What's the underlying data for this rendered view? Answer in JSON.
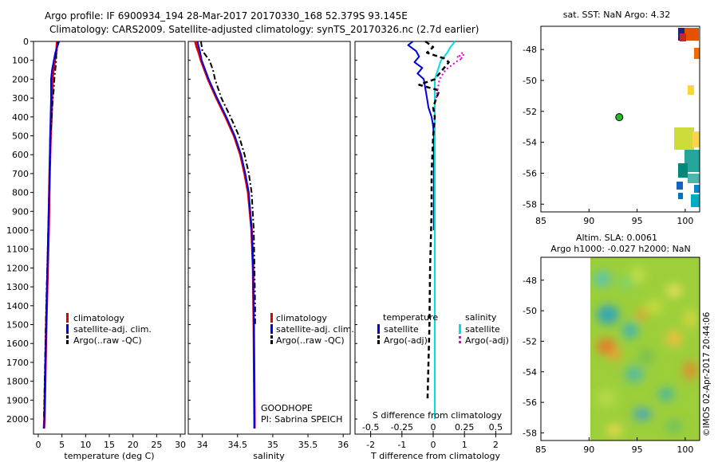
{
  "header": {
    "line1": "Argo profile: IF 6900934_194 28-Mar-2017 20170330_168 52.379S 93.145E",
    "line2": "Climatology: CARS2009. Satellite-adjusted climatology: synTS_20170326.nc (2.7d earlier)"
  },
  "colors": {
    "climatology": "#e00000",
    "satellite": "#0000e0",
    "argo": "#000000",
    "sal_satellite": "#00e0e0",
    "sal_argo": "#e000e0"
  },
  "chart_data": [
    {
      "id": "temperature",
      "type": "line",
      "xlabel": "temperature (deg C)",
      "xlim": [
        -1,
        31
      ],
      "ylim": [
        2080,
        0
      ],
      "xticks": [
        0,
        5,
        10,
        15,
        20,
        25,
        30
      ],
      "yticks": [
        0,
        100,
        200,
        300,
        400,
        500,
        600,
        700,
        800,
        900,
        1000,
        1100,
        1200,
        1300,
        1400,
        1500,
        1600,
        1700,
        1800,
        1900,
        2000
      ],
      "legend": [
        "climatology",
        "satellite-adj. clim.",
        "Argo(..raw -QC)"
      ],
      "series": [
        {
          "name": "climatology",
          "depth": [
            0,
            30,
            60,
            100,
            150,
            200,
            300,
            400,
            500,
            700,
            1000,
            1500,
            2000,
            2050
          ],
          "values": [
            4.0,
            3.9,
            3.8,
            3.5,
            3.2,
            3.0,
            2.9,
            2.8,
            2.6,
            2.4,
            2.2,
            1.7,
            1.3,
            1.2
          ]
        },
        {
          "name": "satellite-adj. clim.",
          "depth": [
            0,
            30,
            60,
            100,
            150,
            200,
            300,
            400,
            500,
            700,
            1000,
            1500,
            2000,
            2050
          ],
          "values": [
            4.4,
            4.0,
            3.6,
            3.3,
            2.9,
            2.7,
            2.7,
            2.6,
            2.5,
            2.4,
            2.1,
            1.7,
            1.3,
            1.2
          ]
        },
        {
          "name": "Argo(..raw -QC)",
          "depth": [
            0,
            30,
            60,
            100,
            150,
            200,
            250,
            300,
            400,
            500,
            700,
            1000,
            1500,
            2000
          ],
          "values": [
            4.2,
            4.0,
            3.8,
            3.8,
            3.6,
            3.4,
            3.3,
            3.1,
            2.8,
            2.6,
            2.4,
            2.1,
            1.6,
            1.2
          ]
        }
      ]
    },
    {
      "id": "salinity",
      "type": "line",
      "xlabel": "salinity",
      "xlim": [
        33.8,
        36.1
      ],
      "ylim": [
        2080,
        0
      ],
      "xticks": [
        34,
        34.5,
        35,
        35.5,
        36
      ],
      "legend": [
        "climatology",
        "satellite-adj. clim.",
        "Argo(..raw -QC)"
      ],
      "annotation": [
        "GOODHOPE",
        "PI: Sabrina SPEICH"
      ],
      "series": [
        {
          "name": "climatology",
          "depth": [
            0,
            30,
            60,
            100,
            200,
            300,
            400,
            500,
            600,
            700,
            800,
            1000,
            1200,
            1500,
            2000,
            2050
          ],
          "values": [
            33.9,
            33.92,
            33.95,
            33.98,
            34.08,
            34.2,
            34.33,
            34.45,
            34.54,
            34.6,
            34.65,
            34.7,
            34.72,
            34.73,
            34.74,
            34.74
          ]
        },
        {
          "name": "satellite-adj. clim.",
          "depth": [
            0,
            30,
            60,
            100,
            200,
            300,
            400,
            500,
            600,
            700,
            800,
            1000,
            1200,
            1500,
            2000,
            2050
          ],
          "values": [
            33.93,
            33.95,
            33.97,
            33.99,
            34.09,
            34.21,
            34.34,
            34.46,
            34.55,
            34.61,
            34.66,
            34.7,
            34.72,
            34.73,
            34.74,
            34.74
          ]
        },
        {
          "name": "Argo(..raw -QC)",
          "depth": [
            0,
            50,
            100,
            150,
            200,
            300,
            400,
            500,
            600,
            700,
            800,
            1000,
            1200,
            1400,
            1500
          ],
          "values": [
            33.98,
            34.0,
            34.1,
            34.15,
            34.18,
            34.27,
            34.4,
            34.52,
            34.6,
            34.66,
            34.7,
            34.73,
            34.74,
            34.75,
            34.75
          ]
        }
      ]
    },
    {
      "id": "difference",
      "type": "line",
      "xlabel": "T difference from climatology",
      "xlabel_top": "S difference from climatology",
      "xlim": [
        -2.5,
        2.5
      ],
      "ylim": [
        2080,
        0
      ],
      "xticks": [
        -2,
        -1,
        0,
        1,
        2
      ],
      "sticks_labels": [
        "-0.5",
        "-0.25",
        "0",
        "0.25",
        "0.5"
      ],
      "sticks_values": [
        -2,
        -1,
        0,
        1,
        2
      ],
      "legend_titles": [
        "temperature",
        "salinity"
      ],
      "legend": [
        "satellite",
        "Argo(-adj)",
        "satellite",
        "Argo(-adj)"
      ],
      "series": [
        {
          "name": "T satellite",
          "depth": [
            0,
            20,
            50,
            80,
            110,
            140,
            170,
            200,
            250,
            300,
            350,
            400,
            450,
            500,
            700,
            1000
          ],
          "values": [
            -0.65,
            -0.8,
            -0.55,
            -0.45,
            -0.6,
            -0.35,
            -0.5,
            -0.3,
            -0.25,
            -0.2,
            -0.15,
            -0.05,
            0.0,
            0.02,
            0.02,
            0.02
          ]
        },
        {
          "name": "T Argo(-adj)",
          "depth": [
            0,
            30,
            60,
            90,
            110,
            140,
            170,
            200,
            230,
            260,
            300,
            350,
            400,
            500,
            700,
            900,
            1200,
            1500,
            1700,
            1900
          ],
          "values": [
            -0.25,
            0.0,
            -0.2,
            0.35,
            0.5,
            0.35,
            0.2,
            0.05,
            -0.45,
            0.2,
            0.1,
            0.0,
            0.05,
            0.0,
            -0.05,
            -0.05,
            -0.1,
            -0.12,
            -0.15,
            -0.18
          ]
        },
        {
          "name": "S satellite",
          "depth": [
            0,
            30,
            60,
            100,
            150,
            200,
            300,
            400,
            500,
            700,
            1000,
            1500,
            2000
          ],
          "values": [
            0.7,
            0.55,
            0.45,
            0.25,
            0.15,
            0.05,
            0.05,
            0.05,
            0.05,
            0.05,
            0.05,
            0.05,
            0.05
          ]
        },
        {
          "name": "S Argo(-adj)",
          "depth": [
            60,
            70,
            80,
            90,
            100,
            150,
            200,
            300
          ],
          "values": [
            0.9,
            1.0,
            0.75,
            0.95,
            0.8,
            0.4,
            0.2,
            0.1
          ]
        }
      ]
    },
    {
      "id": "sst_map",
      "type": "heatmap",
      "title": "sat. SST: NaN Argo: 4.32",
      "xlim": [
        85,
        101.5
      ],
      "ylim": [
        -58.5,
        -46.5
      ],
      "xticks": [
        85,
        90,
        95,
        100
      ],
      "yticks": [
        -48,
        -50,
        -52,
        -54,
        -56,
        -58
      ],
      "marker": {
        "lon": 93.145,
        "lat": -52.379
      }
    },
    {
      "id": "sla_map",
      "type": "heatmap",
      "title_lines": [
        "Altim. SLA: 0.0061",
        "Argo h1000: -0.027 h2000: NaN"
      ],
      "xlim": [
        85,
        101.5
      ],
      "ylim": [
        -58.5,
        -46.5
      ],
      "xticks": [
        85,
        90,
        95,
        100
      ],
      "yticks": [
        -48,
        -50,
        -52,
        -54,
        -56,
        -58
      ],
      "data_lon_start": 90
    }
  ],
  "stamp": "©IMOS 02-Apr-2017 20:44:06"
}
